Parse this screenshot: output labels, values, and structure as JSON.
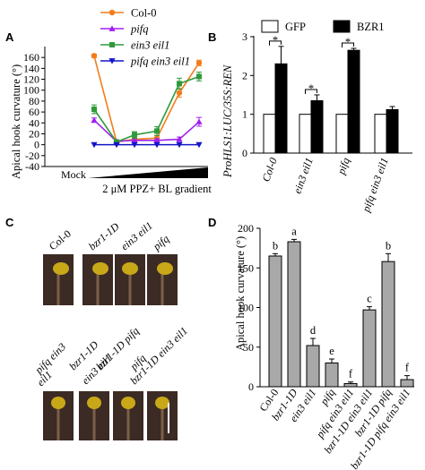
{
  "panels": {
    "A": "A",
    "B": "B",
    "C": "C",
    "D": "D"
  },
  "colors": {
    "col0": "#f47c1b",
    "pifq": "#a020f0",
    "ein3eil1": "#2e9a3a",
    "pifqein3eil1": "#1414c8",
    "bar_gray": "#a8a8a8",
    "seedling_bg": "#3c2a24"
  },
  "chart_data": [
    {
      "panel": "A",
      "type": "line",
      "ylabel": "Apical hook curvature (°)",
      "xlabel": "2 μM PPZ+ BL gradient",
      "x_first_label": "Mock",
      "x": [
        0,
        1,
        2,
        3,
        4,
        5
      ],
      "ylim": [
        -40,
        180
      ],
      "yticks": [
        -40,
        -20,
        0,
        20,
        40,
        60,
        80,
        100,
        120,
        140,
        160
      ],
      "series": [
        {
          "name": "Col-0",
          "color": "#f47c1b",
          "marker": "circle",
          "values": [
            163,
            5,
            10,
            12,
            95,
            150
          ],
          "err": [
            3,
            2,
            4,
            5,
            8,
            5
          ]
        },
        {
          "name": "pifq",
          "color": "#a020f0",
          "marker": "triangle",
          "values": [
            45,
            6,
            8,
            8,
            10,
            42
          ],
          "err": [
            4,
            2,
            3,
            3,
            4,
            8
          ]
        },
        {
          "name": "ein3 eil1",
          "color": "#2e9a3a",
          "marker": "square",
          "values": [
            65,
            5,
            18,
            25,
            112,
            125
          ],
          "err": [
            8,
            3,
            6,
            8,
            10,
            8
          ]
        },
        {
          "name": "pifq ein3 eil1",
          "color": "#1414c8",
          "marker": "triangle-down",
          "values": [
            0,
            0,
            0,
            0,
            0,
            0
          ],
          "err": [
            1,
            1,
            1,
            1,
            1,
            1
          ]
        }
      ]
    },
    {
      "panel": "B",
      "type": "bar",
      "ylabel": "ProHLS1:LUC/35S:REN",
      "categories": [
        "Col-0",
        "ein3 eil1",
        "pifq",
        "pifq ein3 eil1"
      ],
      "ylim": [
        0,
        3
      ],
      "yticks": [
        0,
        1,
        2,
        3
      ],
      "series": [
        {
          "name": "GFP",
          "fill": "#ffffff",
          "values": [
            1,
            1,
            1,
            1
          ],
          "err": [
            0,
            0,
            0,
            0
          ]
        },
        {
          "name": "BZR1",
          "fill": "#000000",
          "values": [
            2.3,
            1.35,
            2.65,
            1.12
          ],
          "err": [
            0.45,
            0.15,
            0.05,
            0.08
          ]
        }
      ],
      "significance": [
        "*",
        "*",
        "*",
        ""
      ]
    },
    {
      "panel": "D",
      "type": "bar",
      "ylabel": "Apical hook curvature (°)",
      "categories": [
        "Col-0",
        "bzr1-1D",
        "ein3 eil1",
        "pifq",
        "pifq ein3 eil1",
        "bzr1-1D ein3 eil1",
        "bzr1-1D pifq",
        "bzr1-1D pifq ein3 eil1"
      ],
      "values": [
        165,
        183,
        52,
        30,
        4,
        97,
        158,
        9
      ],
      "err": [
        3,
        3,
        9,
        5,
        2,
        4,
        10,
        5
      ],
      "letters": [
        "b",
        "a",
        "d",
        "e",
        "f",
        "c",
        "b",
        "f"
      ],
      "ylim": [
        0,
        200
      ],
      "yticks": [
        0,
        50,
        100,
        150,
        200
      ]
    }
  ],
  "panelC": {
    "row1_labels": [
      "Col-0",
      "bzr1-1D",
      "ein3 eil1",
      "pifq"
    ],
    "row2_labels_top": [
      "pifq ein3",
      "bzr1-1D",
      "bzr1-1D pifq",
      "pifq"
    ],
    "row2_labels_bottom": [
      "eil1",
      "ein3 eil1",
      "bzr1-1D ein3 eil1"
    ]
  }
}
